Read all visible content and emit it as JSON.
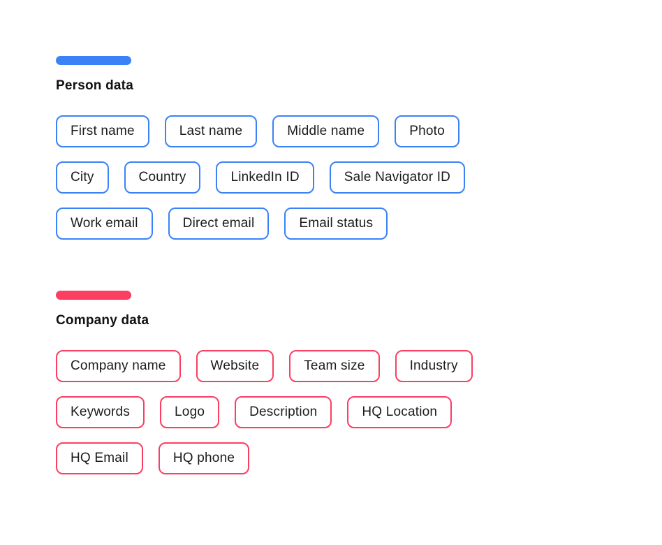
{
  "sections": [
    {
      "title": "Person data",
      "accent_color": "#3b82f6",
      "rows": [
        [
          "First name",
          "Last name",
          "Middle name",
          "Photo"
        ],
        [
          "City",
          "Country",
          "LinkedIn ID",
          "Sale Navigator ID"
        ],
        [
          "Work email",
          "Direct email",
          "Email status"
        ]
      ]
    },
    {
      "title": "Company data",
      "accent_color": "#fb3e62",
      "rows": [
        [
          "Company name",
          "Website",
          "Team size",
          "Industry"
        ],
        [
          "Keywords",
          "Logo",
          "Description",
          "HQ Location"
        ],
        [
          "HQ Email",
          "HQ phone"
        ]
      ]
    }
  ]
}
